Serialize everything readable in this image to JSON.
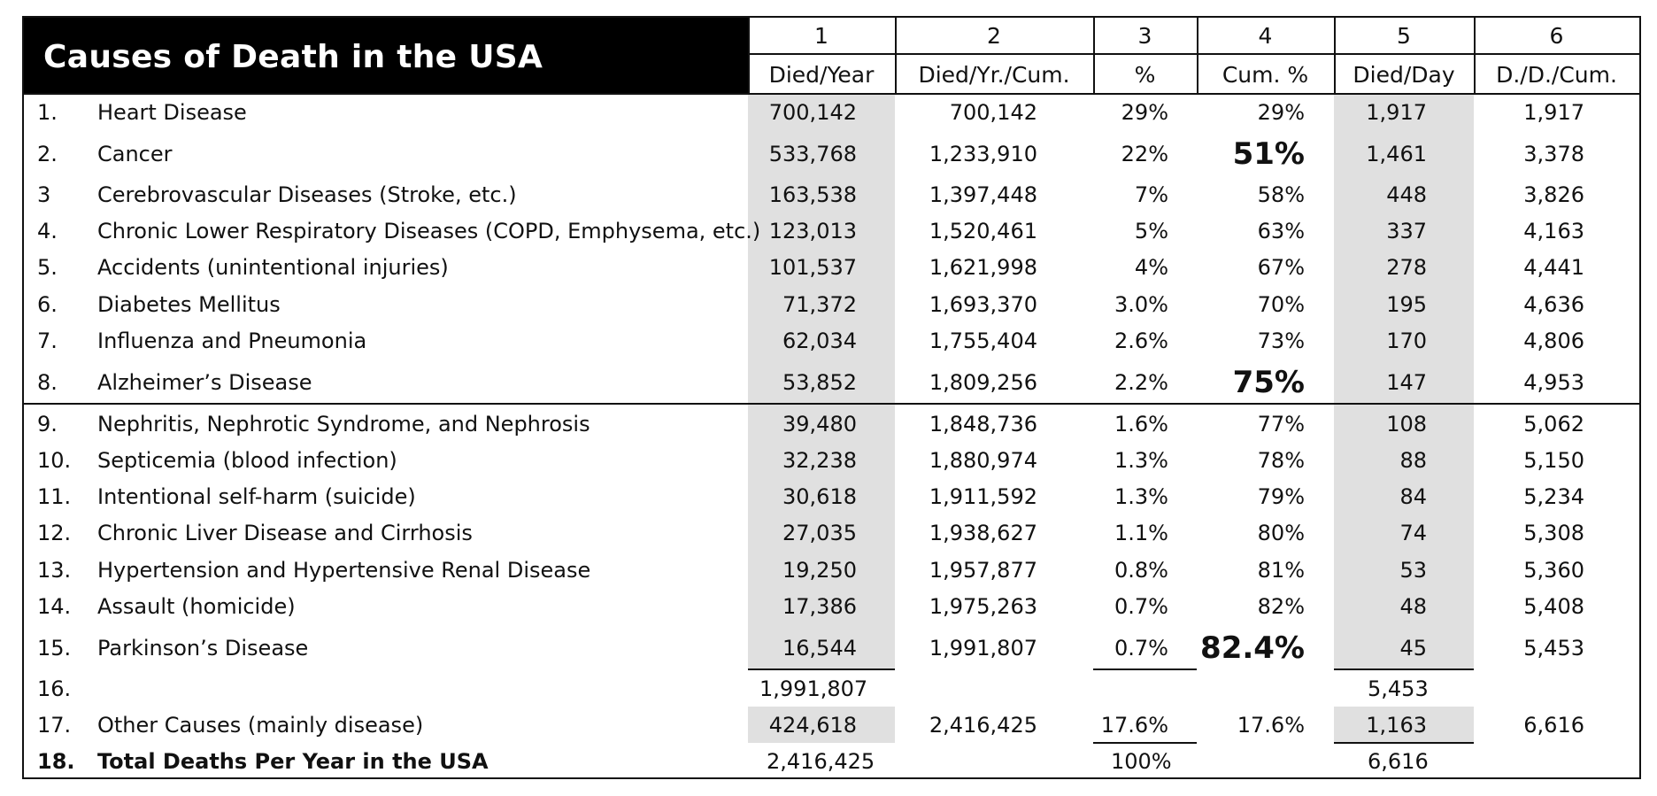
{
  "title": "Causes of Death in the USA",
  "columns": [
    {
      "number": "1",
      "label": "Died/Year"
    },
    {
      "number": "2",
      "label": "Died/Yr./Cum."
    },
    {
      "number": "3",
      "label": "%"
    },
    {
      "number": "4",
      "label": "Cum. %"
    },
    {
      "number": "5",
      "label": "Died/Day"
    },
    {
      "number": "6",
      "label": "D./D./Cum."
    }
  ],
  "rows": [
    {
      "rank": "1.",
      "cause": "Heart Disease",
      "died_year": "700,142",
      "died_cum": "700,142",
      "pct": "29%",
      "cum_pct": "29%",
      "died_day": "1,917",
      "day_cum": "1,917"
    },
    {
      "rank": "2.",
      "cause": "Cancer",
      "died_year": "533,768",
      "died_cum": "1,233,910",
      "pct": "22%",
      "cum_pct": "51%",
      "died_day": "1,461",
      "day_cum": "3,378"
    },
    {
      "rank": "3",
      "cause": "Cerebrovascular Diseases (Stroke, etc.)",
      "died_year": "163,538",
      "died_cum": "1,397,448",
      "pct": "7%",
      "cum_pct": "58%",
      "died_day": "448",
      "day_cum": "3,826"
    },
    {
      "rank": "4.",
      "cause": "Chronic Lower Respiratory Diseases (COPD, Emphysema, etc.)",
      "died_year": "123,013",
      "died_cum": "1,520,461",
      "pct": "5%",
      "cum_pct": "63%",
      "died_day": "337",
      "day_cum": "4,163"
    },
    {
      "rank": "5.",
      "cause": "Accidents (unintentional injuries)",
      "died_year": "101,537",
      "died_cum": "1,621,998",
      "pct": "4%",
      "cum_pct": "67%",
      "died_day": "278",
      "day_cum": "4,441"
    },
    {
      "rank": "6.",
      "cause": "Diabetes Mellitus",
      "died_year": "71,372",
      "died_cum": "1,693,370",
      "pct": "3.0%",
      "cum_pct": "70%",
      "died_day": "195",
      "day_cum": "4,636"
    },
    {
      "rank": "7.",
      "cause": "Influenza and Pneumonia",
      "died_year": "62,034",
      "died_cum": "1,755,404",
      "pct": "2.6%",
      "cum_pct": "73%",
      "died_day": "170",
      "day_cum": "4,806"
    },
    {
      "rank": "8.",
      "cause": "Alzheimer’s Disease",
      "died_year": "53,852",
      "died_cum": "1,809,256",
      "pct": "2.2%",
      "cum_pct": "75%",
      "died_day": "147",
      "day_cum": "4,953"
    },
    {
      "rank": "9.",
      "cause": "Nephritis, Nephrotic Syndrome, and Nephrosis",
      "died_year": "39,480",
      "died_cum": "1,848,736",
      "pct": "1.6%",
      "cum_pct": "77%",
      "died_day": "108",
      "day_cum": "5,062"
    },
    {
      "rank": "10.",
      "cause": "Septicemia (blood infection)",
      "died_year": "32,238",
      "died_cum": "1,880,974",
      "pct": "1.3%",
      "cum_pct": "78%",
      "died_day": "88",
      "day_cum": "5,150"
    },
    {
      "rank": "11.",
      "cause": "Intentional self-harm (suicide)",
      "died_year": "30,618",
      "died_cum": "1,911,592",
      "pct": "1.3%",
      "cum_pct": "79%",
      "died_day": "84",
      "day_cum": "5,234"
    },
    {
      "rank": "12.",
      "cause": "Chronic Liver Disease and Cirrhosis",
      "died_year": "27,035",
      "died_cum": "1,938,627",
      "pct": "1.1%",
      "cum_pct": "80%",
      "died_day": "74",
      "day_cum": "5,308"
    },
    {
      "rank": "13.",
      "cause": "Hypertension and Hypertensive Renal Disease",
      "died_year": "19,250",
      "died_cum": "1,957,877",
      "pct": "0.8%",
      "cum_pct": "81%",
      "died_day": "53",
      "day_cum": "5,360"
    },
    {
      "rank": "14.",
      "cause": "Assault (homicide)",
      "died_year": "17,386",
      "died_cum": "1,975,263",
      "pct": "0.7%",
      "cum_pct": "82%",
      "died_day": "48",
      "day_cum": "5,408"
    },
    {
      "rank": "15.",
      "cause": "Parkinson’s Disease",
      "died_year": "16,544",
      "died_cum": "1,991,807",
      "pct": "0.7%",
      "cum_pct": "82.4%",
      "died_day": "45",
      "day_cum": "5,453"
    },
    {
      "rank": "16.",
      "cause": "",
      "died_year": "1,991,807",
      "died_cum": "",
      "pct": "",
      "cum_pct": "",
      "died_day": "5,453",
      "day_cum": ""
    },
    {
      "rank": "17.",
      "cause": "Other Causes (mainly disease)",
      "died_year": "424,618",
      "died_cum": "2,416,425",
      "pct": "17.6%",
      "cum_pct": "17.6%",
      "died_day": "1,163",
      "day_cum": "6,616"
    },
    {
      "rank": "18.",
      "cause": "Total Deaths Per Year in the USA",
      "died_year": "2,416,425",
      "died_cum": "",
      "pct": "100%",
      "cum_pct": "",
      "died_day": "6,616",
      "day_cum": ""
    }
  ]
}
